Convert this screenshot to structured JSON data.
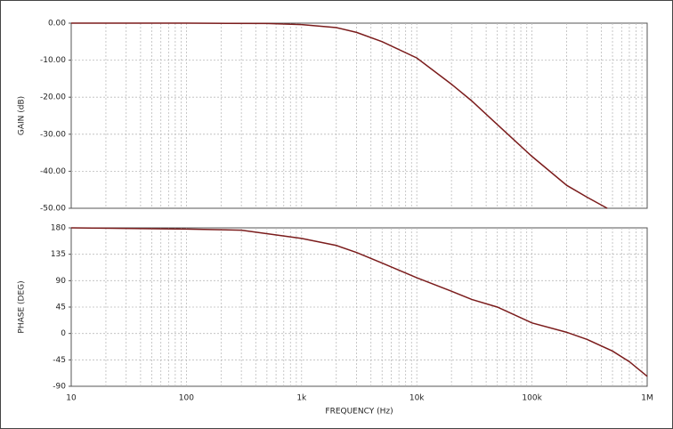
{
  "chart_data": [
    {
      "type": "line",
      "ylabel": "GAIN (dB)",
      "xscale": "log",
      "grid": true,
      "minor_grid": true,
      "color": "#7b1c1c",
      "x": [
        10,
        100,
        500,
        1000,
        2000,
        3000,
        5000,
        10000,
        20000,
        30000,
        50000,
        100000,
        200000,
        300000,
        450000
      ],
      "values": [
        0,
        0,
        -0.1,
        -0.4,
        -1.2,
        -2.5,
        -5,
        -9.4,
        -16.5,
        -21,
        -27.4,
        -36,
        -43.8,
        -47,
        -50
      ],
      "xlim": [
        10,
        1000000
      ],
      "ylim": [
        -50,
        0
      ],
      "yticks": [
        {
          "value": 0,
          "label": "0.00"
        },
        {
          "value": -10,
          "label": "-10.00"
        },
        {
          "value": -20,
          "label": "-20.00"
        },
        {
          "value": -30,
          "label": "-30.00"
        },
        {
          "value": -40,
          "label": "-40.00"
        },
        {
          "value": -50,
          "label": "-50.00"
        }
      ]
    },
    {
      "type": "line",
      "ylabel": "PHASE (DEG)",
      "xlabel": "FREQUENCY (Hz)",
      "xscale": "log",
      "grid": true,
      "minor_grid": true,
      "color": "#7b1c1c",
      "x": [
        10,
        100,
        300,
        1000,
        2000,
        3000,
        5000,
        10000,
        20000,
        30000,
        50000,
        100000,
        200000,
        300000,
        500000,
        700000,
        1000000
      ],
      "values": [
        180,
        178,
        176,
        162,
        150,
        138,
        120,
        95,
        72,
        58,
        45,
        18,
        2,
        -10,
        -30,
        -48,
        -73
      ],
      "xlim": [
        10,
        1000000
      ],
      "ylim": [
        -90,
        180
      ],
      "yticks": [
        180,
        135,
        90,
        45,
        0,
        -45,
        -90
      ],
      "xticks": [
        10,
        100,
        {
          "value": 1000,
          "label": "1k"
        },
        {
          "value": 10000,
          "label": "10k"
        },
        {
          "value": 100000,
          "label": "100k"
        },
        {
          "value": 1000000,
          "label": "1M"
        }
      ]
    }
  ]
}
